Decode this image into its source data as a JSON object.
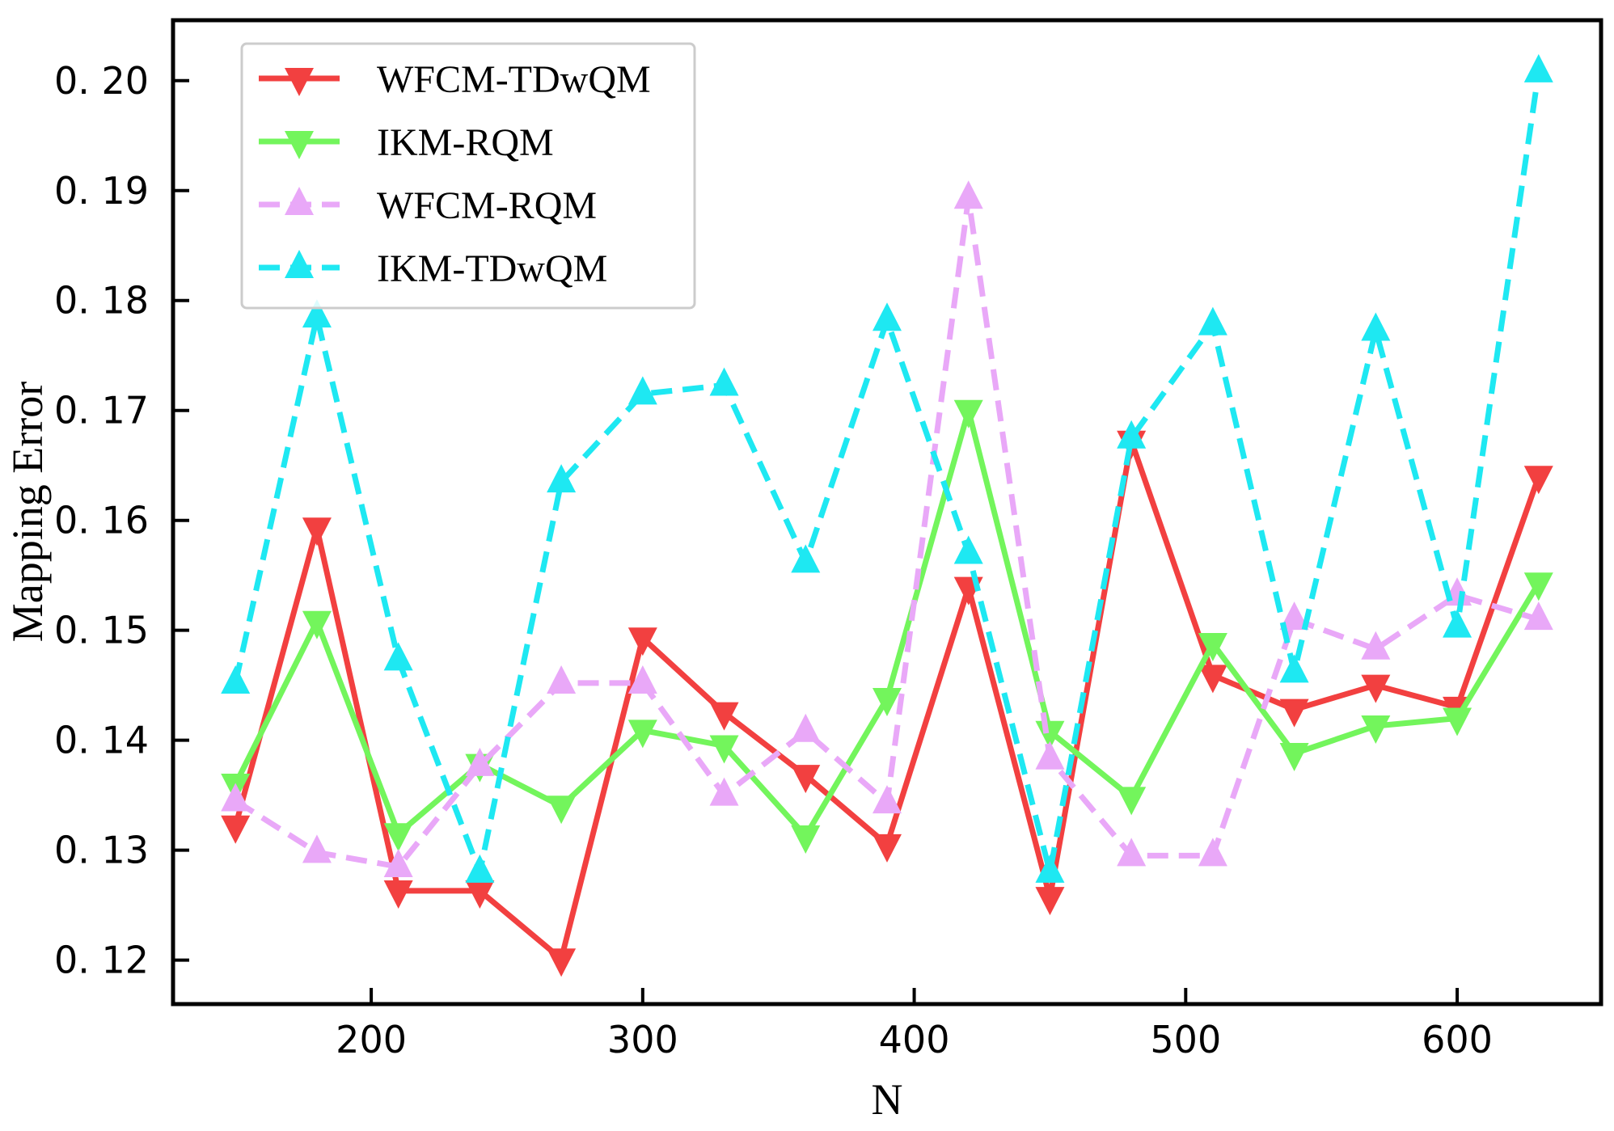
{
  "chart_data": {
    "type": "line",
    "title": "",
    "xlabel": "N",
    "ylabel": "Mapping Error",
    "xlim": [
      127,
      653
    ],
    "ylim": [
      0.116,
      0.2055
    ],
    "xticks": [
      200,
      300,
      400,
      500,
      600
    ],
    "yticks": [
      0.12,
      0.13,
      0.14,
      0.15,
      0.16,
      0.17,
      0.18,
      0.19,
      0.2
    ],
    "ytick_labels": [
      "0. 12",
      "0. 13",
      "0. 14",
      "0. 15",
      "0. 16",
      "0. 17",
      "0. 18",
      "0. 19",
      "0. 20"
    ],
    "legend_position": "top-left",
    "x": [
      150,
      180,
      210,
      240,
      270,
      300,
      330,
      360,
      390,
      420,
      450,
      480,
      510,
      540,
      570,
      600,
      630
    ],
    "series": [
      {
        "name": "WFCM-TDwQM",
        "color": "#f24040",
        "dash": "solid",
        "marker": "triangle-down",
        "values": [
          0.1322,
          0.1593,
          0.1263,
          0.1263,
          0.1201,
          0.1493,
          0.1425,
          0.1368,
          0.1305,
          0.1539,
          0.1257,
          0.1672,
          0.1459,
          0.1428,
          0.145,
          0.143,
          0.164
        ]
      },
      {
        "name": "IKM-RQM",
        "color": "#73f55c",
        "dash": "solid",
        "marker": "triangle-down",
        "values": [
          0.136,
          0.1508,
          0.1315,
          0.1378,
          0.134,
          0.1409,
          0.1395,
          0.1313,
          0.1438,
          0.17,
          0.1408,
          0.1348,
          0.1488,
          0.1388,
          0.1413,
          0.142,
          0.1543
        ]
      },
      {
        "name": "WFCM-RQM",
        "color": "#e9a8f8",
        "dash": "dashed",
        "marker": "triangle-up",
        "values": [
          0.1345,
          0.1298,
          0.1285,
          0.1377,
          0.1452,
          0.1452,
          0.135,
          0.1408,
          0.1343,
          0.1893,
          0.1383,
          0.1295,
          0.1295,
          0.151,
          0.1483,
          0.1532,
          0.151
        ]
      },
      {
        "name": "IKM-TDwQM",
        "color": "#1ee8f2",
        "dash": "dashed",
        "marker": "triangle-up",
        "values": [
          0.1452,
          0.1785,
          0.1473,
          0.128,
          0.1635,
          0.1715,
          0.1723,
          0.1562,
          0.1782,
          0.157,
          0.128,
          0.1675,
          0.1778,
          0.1462,
          0.1773,
          0.1503,
          0.2008
        ]
      }
    ]
  }
}
